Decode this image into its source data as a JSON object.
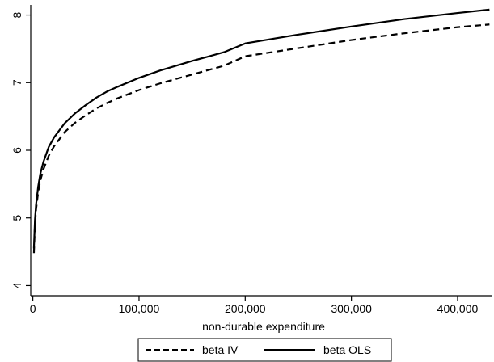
{
  "chart_data": {
    "type": "line",
    "title": "",
    "xlabel": "non-durable expenditure",
    "ylabel": "",
    "xlim": [
      -2000,
      432000
    ],
    "ylim": [
      3.85,
      8.15
    ],
    "x_ticks": [
      0,
      100000,
      200000,
      300000,
      400000
    ],
    "x_tick_labels": [
      "0",
      "100,000",
      "200,000",
      "300,000",
      "400,000"
    ],
    "y_ticks": [
      4,
      5,
      6,
      7,
      8
    ],
    "y_tick_labels": [
      "4",
      "5",
      "6",
      "7",
      "8"
    ],
    "grid": false,
    "legend_position": "bottom",
    "series": [
      {
        "name": "beta IV",
        "style": "dashed",
        "color": "#000000",
        "x": [
          1000,
          2000,
          3000,
          5000,
          7000,
          10000,
          15000,
          20000,
          30000,
          40000,
          50000,
          60000,
          70000,
          80000,
          100000,
          120000,
          150000,
          180000,
          200000,
          250000,
          300000,
          350000,
          400000,
          430000
        ],
        "y": [
          4.48,
          4.9,
          5.12,
          5.38,
          5.55,
          5.72,
          5.92,
          6.06,
          6.27,
          6.41,
          6.52,
          6.62,
          6.7,
          6.77,
          6.89,
          6.99,
          7.12,
          7.25,
          7.39,
          7.51,
          7.63,
          7.73,
          7.82,
          7.86
        ]
      },
      {
        "name": "beta OLS",
        "style": "solid",
        "color": "#000000",
        "x": [
          1000,
          2000,
          3000,
          5000,
          7000,
          10000,
          15000,
          20000,
          30000,
          40000,
          50000,
          60000,
          70000,
          80000,
          100000,
          120000,
          150000,
          180000,
          200000,
          250000,
          300000,
          350000,
          400000,
          430000
        ],
        "y": [
          4.55,
          4.97,
          5.19,
          5.46,
          5.65,
          5.83,
          6.05,
          6.19,
          6.4,
          6.55,
          6.67,
          6.78,
          6.87,
          6.94,
          7.07,
          7.18,
          7.32,
          7.45,
          7.58,
          7.71,
          7.83,
          7.94,
          8.03,
          8.08
        ]
      }
    ]
  }
}
